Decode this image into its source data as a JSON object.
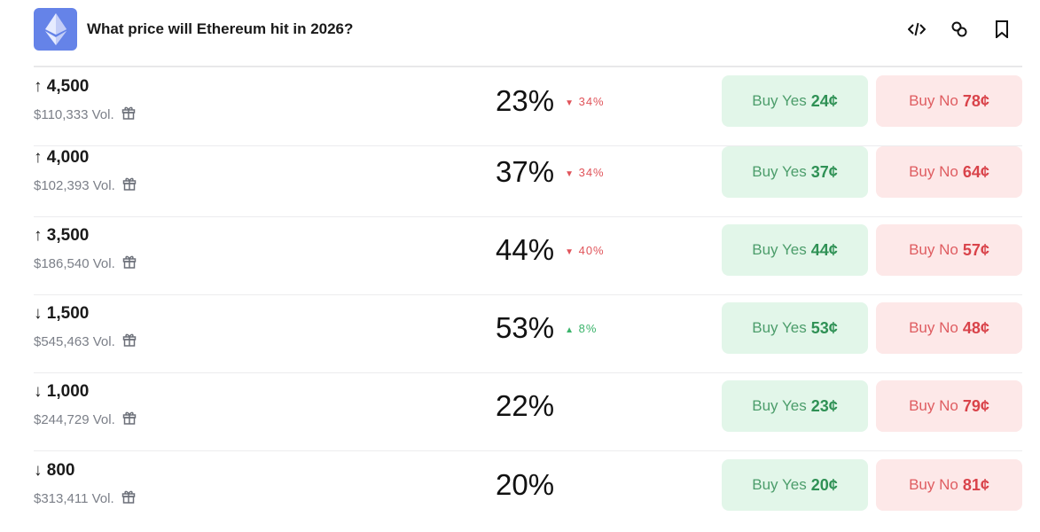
{
  "header": {
    "title": "What price will Ethereum hit in 2026?",
    "logo_icon": "ethereum-logo",
    "actions": [
      "embed-code-icon",
      "link-icon",
      "bookmark-icon"
    ]
  },
  "colors": {
    "logo_bg": "#6583e8",
    "yes_bg": "#e2f6e9",
    "no_bg": "#fde8e8",
    "up": "#3bb46b",
    "down": "#e0545a"
  },
  "markets": [
    {
      "arrow": "↑",
      "label": "4,500",
      "volume": "$110,333 Vol.",
      "chance": "23%",
      "change": "34%",
      "direction": "down",
      "yes_label": "Buy Yes",
      "yes_price": "24¢",
      "no_label": "Buy No",
      "no_price": "78¢"
    },
    {
      "arrow": "↑",
      "label": "4,000",
      "volume": "$102,393 Vol.",
      "chance": "37%",
      "change": "34%",
      "direction": "down",
      "yes_label": "Buy Yes",
      "yes_price": "37¢",
      "no_label": "Buy No",
      "no_price": "64¢"
    },
    {
      "arrow": "↑",
      "label": "3,500",
      "volume": "$186,540 Vol.",
      "chance": "44%",
      "change": "40%",
      "direction": "down",
      "yes_label": "Buy Yes",
      "yes_price": "44¢",
      "no_label": "Buy No",
      "no_price": "57¢"
    },
    {
      "arrow": "↓",
      "label": "1,500",
      "volume": "$545,463 Vol.",
      "chance": "53%",
      "change": "8%",
      "direction": "up",
      "yes_label": "Buy Yes",
      "yes_price": "53¢",
      "no_label": "Buy No",
      "no_price": "48¢"
    },
    {
      "arrow": "↓",
      "label": "1,000",
      "volume": "$244,729 Vol.",
      "chance": "22%",
      "change": "",
      "direction": "",
      "yes_label": "Buy Yes",
      "yes_price": "23¢",
      "no_label": "Buy No",
      "no_price": "79¢"
    },
    {
      "arrow": "↓",
      "label": "800",
      "volume": "$313,411 Vol.",
      "chance": "20%",
      "change": "",
      "direction": "",
      "yes_label": "Buy Yes",
      "yes_price": "20¢",
      "no_label": "Buy No",
      "no_price": "81¢"
    }
  ]
}
